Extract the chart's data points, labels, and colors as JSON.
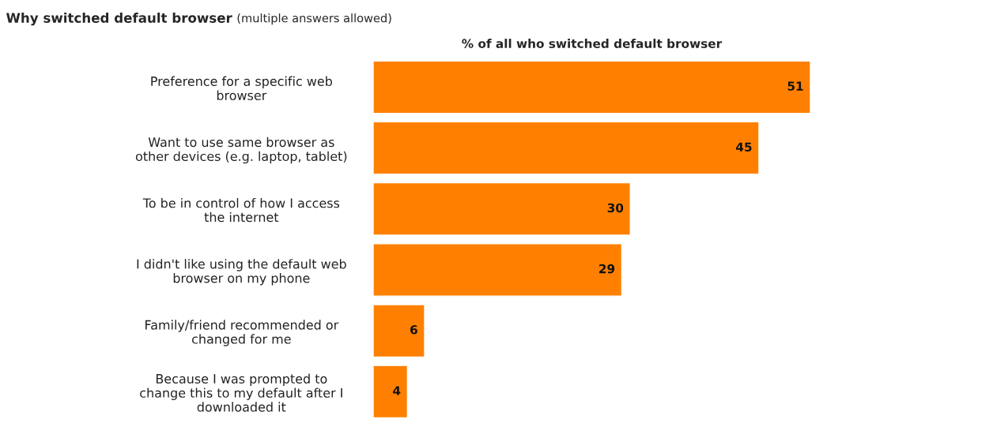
{
  "chart_data": {
    "type": "bar",
    "orientation": "horizontal",
    "title": "Why switched default browser",
    "subtitle": "(multiple answers allowed)",
    "xlabel": "% of all who switched default browser",
    "categories": [
      "Preference for a specific web\nbrowser",
      "Want to use same browser as\nother devices (e.g. laptop, tablet)",
      "To be in control of how I access\nthe internet",
      "I didn't like using the default web\nbrowser on my phone",
      "Family/friend recommended or\nchanged for me",
      "Because I was prompted to\nchange this to my default after I\ndownloaded it"
    ],
    "values": [
      51,
      45,
      30,
      29,
      6,
      4
    ],
    "color": "#ff8000",
    "data_labels": true,
    "grid": false,
    "legend": false
  }
}
